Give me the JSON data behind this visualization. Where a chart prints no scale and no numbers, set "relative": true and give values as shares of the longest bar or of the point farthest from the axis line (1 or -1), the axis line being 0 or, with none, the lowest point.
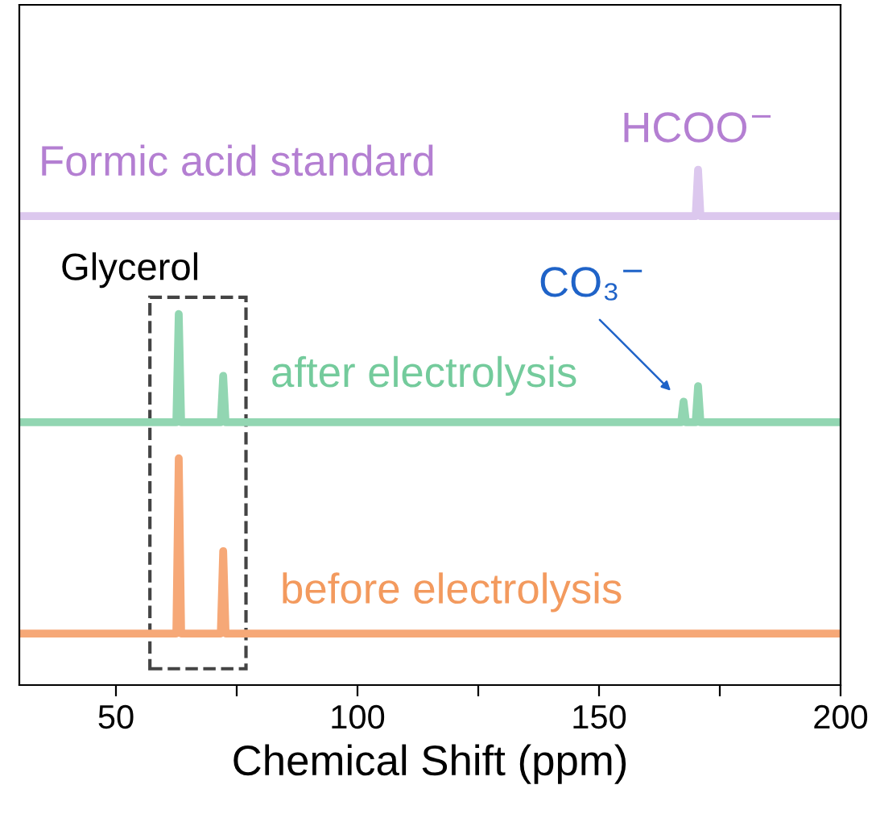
{
  "chart_data": {
    "type": "line",
    "relative": true,
    "xlabel": "Chemical Shift (ppm)",
    "xlim": [
      30,
      200
    ],
    "xticks": [
      50,
      {
        "value": 75,
        "label": null
      },
      100,
      {
        "value": 125,
        "label": null
      },
      150,
      {
        "value": 175,
        "label": null
      },
      200
    ],
    "legend": false,
    "grid": false,
    "marker": "none",
    "line_style": "solid",
    "tick_labels": "x",
    "series": [
      {
        "name": "Formic acid standard",
        "color": "#dcc8ee",
        "x": [
          30,
          170.0,
          170.5,
          171.0,
          200
        ],
        "values": [
          0.91,
          0.91,
          1.0,
          0.91,
          0.91
        ]
      },
      {
        "name": "after electrolysis",
        "color": "#92d6b2",
        "x": [
          30,
          62.5,
          63,
          63.5,
          71.7,
          72.2,
          72.7,
          167.0,
          167.5,
          168.0,
          170.0,
          170.5,
          171.0,
          200
        ],
        "values": [
          0.51,
          0.51,
          0.72,
          0.51,
          0.51,
          0.6,
          0.51,
          0.51,
          0.55,
          0.51,
          0.51,
          0.58,
          0.51,
          0.51
        ]
      },
      {
        "name": "before electrolysis",
        "color": "#f6a877",
        "x": [
          30,
          62.5,
          63,
          63.5,
          71.7,
          72.2,
          72.7,
          200
        ],
        "values": [
          0.1,
          0.1,
          0.44,
          0.1,
          0.1,
          0.26,
          0.1,
          0.1
        ]
      }
    ],
    "annotations": [
      {
        "text": "HCOO$^{−}$",
        "x": 170.5,
        "y": 1.0
      },
      {
        "text": "CO₃$^{−}$",
        "x": 167.5,
        "y": 0.55
      },
      "Glycerol"
    ]
  }
}
